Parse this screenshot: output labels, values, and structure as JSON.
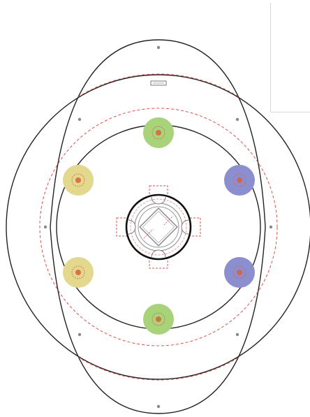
{
  "title": "",
  "colors": {
    "outline": "#222222",
    "center_ring": "#111111",
    "dashed_guide": "#e0504a",
    "mount_hole": "#888888",
    "inner_gray": "#9a9a9a",
    "green_pad": "#a8d37a",
    "yellow_pad": "#e3d98e",
    "blue_pad": "#8c8fcf",
    "pad_center": "#d9603c",
    "background": "#ffffff"
  },
  "pads": [
    {
      "group": "green",
      "label": ""
    },
    {
      "group": "green",
      "label": ""
    },
    {
      "group": "yellow",
      "label": ""
    },
    {
      "group": "yellow",
      "label": ""
    },
    {
      "group": "blue",
      "label": ""
    },
    {
      "group": "blue",
      "label": ""
    }
  ],
  "mount_holes": 8,
  "top_label_plate": "",
  "side_panel": {
    "text": ""
  }
}
